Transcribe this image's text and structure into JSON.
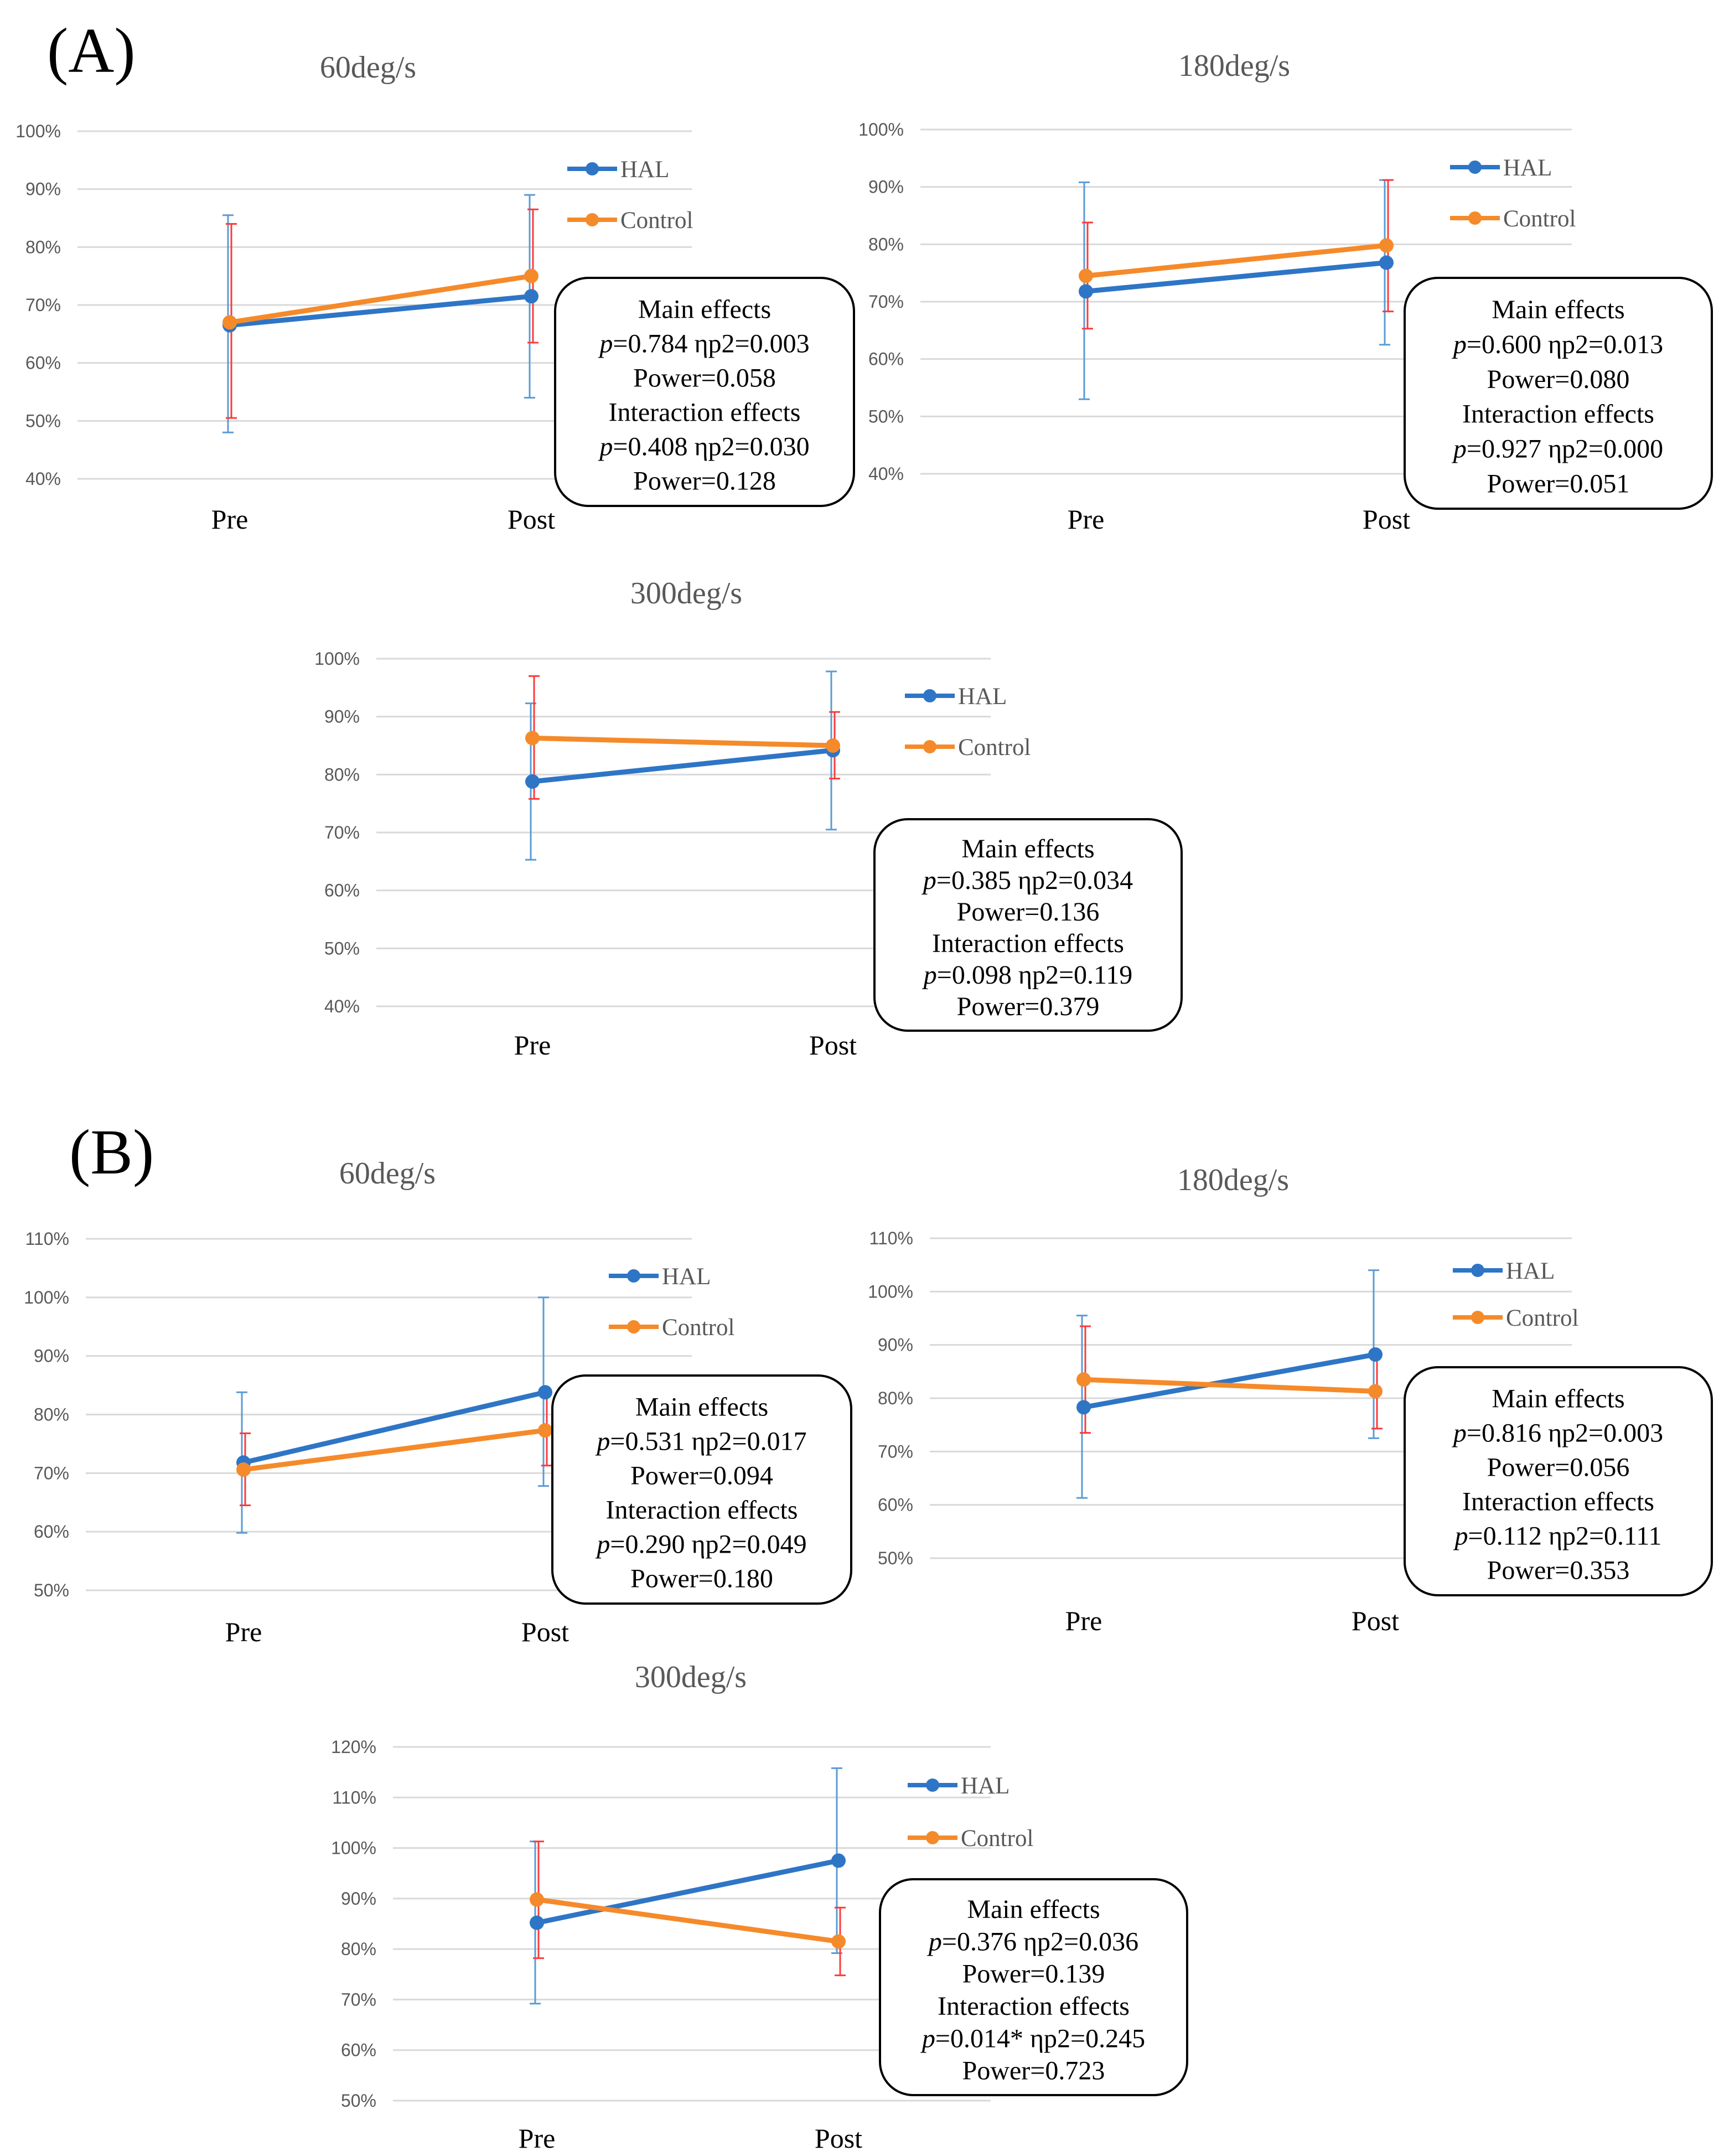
{
  "panels": [
    {
      "label": "(A)"
    },
    {
      "label": "(B)"
    }
  ],
  "colors": {
    "hal": "#2e75c6",
    "control": "#f58a2a",
    "error_hal": "#5b9bd5",
    "error_control": "#ff3a3a"
  },
  "chart_data": [
    {
      "type": "line",
      "panel": "(A)",
      "title": "60deg/s",
      "categories": [
        "Pre",
        "Post"
      ],
      "ylim": [
        40,
        100
      ],
      "ytick_step": 10,
      "yticks": [
        "40%",
        "50%",
        "60%",
        "70%",
        "80%",
        "90%",
        "100%"
      ],
      "series": [
        {
          "name": "HAL",
          "values": [
            66.5,
            71.5
          ],
          "err_low": [
            48,
            54
          ],
          "err_high": [
            85.5,
            89
          ]
        },
        {
          "name": "Control",
          "values": [
            67,
            75
          ],
          "err_low": [
            50.5,
            63.5
          ],
          "err_high": [
            84,
            86.5
          ]
        }
      ],
      "stats": [
        "Main effects",
        "p=0.784 ηp2=0.003",
        "Power=0.058",
        "Interaction effects",
        "p=0.408 ηp2=0.030",
        "Power=0.128"
      ]
    },
    {
      "type": "line",
      "panel": "(A)",
      "title": "180deg/s",
      "categories": [
        "Pre",
        "Post"
      ],
      "ylim": [
        40,
        100
      ],
      "ytick_step": 10,
      "yticks": [
        "40%",
        "50%",
        "60%",
        "70%",
        "80%",
        "90%",
        "100%"
      ],
      "series": [
        {
          "name": "HAL",
          "values": [
            71.8,
            76.8
          ],
          "err_low": [
            53,
            62.5
          ],
          "err_high": [
            90.8,
            91.2
          ]
        },
        {
          "name": "Control",
          "values": [
            74.5,
            79.8
          ],
          "err_low": [
            65.3,
            68.3
          ],
          "err_high": [
            83.8,
            91.2
          ]
        }
      ],
      "stats": [
        "Main effects",
        "p=0.600 ηp2=0.013",
        "Power=0.080",
        "Interaction effects",
        "p=0.927 ηp2=0.000",
        "Power=0.051"
      ]
    },
    {
      "type": "line",
      "panel": "(A)",
      "title": "300deg/s",
      "categories": [
        "Pre",
        "Post"
      ],
      "ylim": [
        40,
        100
      ],
      "ytick_step": 10,
      "yticks": [
        "40%",
        "50%",
        "60%",
        "70%",
        "80%",
        "90%",
        "100%"
      ],
      "series": [
        {
          "name": "HAL",
          "values": [
            78.8,
            84.2
          ],
          "err_low": [
            65.3,
            70.5
          ],
          "err_high": [
            92.3,
            97.8
          ]
        },
        {
          "name": "Control",
          "values": [
            86.3,
            85
          ],
          "err_low": [
            75.8,
            79.3
          ],
          "err_high": [
            97,
            90.8
          ]
        }
      ],
      "stats": [
        "Main effects",
        "p=0.385 ηp2=0.034",
        "Power=0.136",
        "Interaction effects",
        "p=0.098 ηp2=0.119",
        "Power=0.379"
      ]
    },
    {
      "type": "line",
      "panel": "(B)",
      "title": "60deg/s",
      "categories": [
        "Pre",
        "Post"
      ],
      "ylim": [
        50,
        110
      ],
      "ytick_step": 10,
      "yticks": [
        "50%",
        "60%",
        "70%",
        "80%",
        "90%",
        "100%",
        "110%"
      ],
      "series": [
        {
          "name": "HAL",
          "values": [
            71.8,
            83.8
          ],
          "err_low": [
            59.8,
            67.8
          ],
          "err_high": [
            83.8,
            100
          ]
        },
        {
          "name": "Control",
          "values": [
            70.6,
            77.3
          ],
          "err_low": [
            64.5,
            71.3
          ],
          "err_high": [
            76.8,
            83.8
          ]
        }
      ],
      "stats": [
        "Main effects",
        "p=0.531 ηp2=0.017",
        "Power=0.094",
        "Interaction effects",
        "p=0.290 ηp2=0.049",
        "Power=0.180"
      ]
    },
    {
      "type": "line",
      "panel": "(B)",
      "title": "180deg/s",
      "categories": [
        "Pre",
        "Post"
      ],
      "ylim": [
        50,
        110
      ],
      "ytick_step": 10,
      "yticks": [
        "50%",
        "60%",
        "70%",
        "80%",
        "90%",
        "100%",
        "110%"
      ],
      "series": [
        {
          "name": "HAL",
          "values": [
            78.3,
            88.2
          ],
          "err_low": [
            61.3,
            72.5
          ],
          "err_high": [
            95.5,
            104
          ]
        },
        {
          "name": "Control",
          "values": [
            83.5,
            81.3
          ],
          "err_low": [
            73.5,
            74.3
          ],
          "err_high": [
            93.5,
            88.3
          ]
        }
      ],
      "stats": [
        "Main effects",
        "p=0.816 ηp2=0.003",
        "Power=0.056",
        "Interaction effects",
        "p=0.112 ηp2=0.111",
        "Power=0.353"
      ]
    },
    {
      "type": "line",
      "panel": "(B)",
      "title": "300deg/s",
      "categories": [
        "Pre",
        "Post"
      ],
      "ylim": [
        50,
        120
      ],
      "ytick_step": 10,
      "yticks": [
        "50%",
        "60%",
        "70%",
        "80%",
        "90%",
        "100%",
        "110%",
        "120%"
      ],
      "series": [
        {
          "name": "HAL",
          "values": [
            85.2,
            97.5
          ],
          "err_low": [
            69.2,
            79.2
          ],
          "err_high": [
            101.3,
            115.8
          ]
        },
        {
          "name": "Control",
          "values": [
            89.8,
            81.5
          ],
          "err_low": [
            78.2,
            74.8
          ],
          "err_high": [
            101.3,
            88.2
          ]
        }
      ],
      "stats": [
        "Main effects",
        "p=0.376 ηp2=0.036",
        "Power=0.139",
        "Interaction effects",
        "p=0.014* ηp2=0.245",
        "Power=0.723"
      ]
    }
  ]
}
